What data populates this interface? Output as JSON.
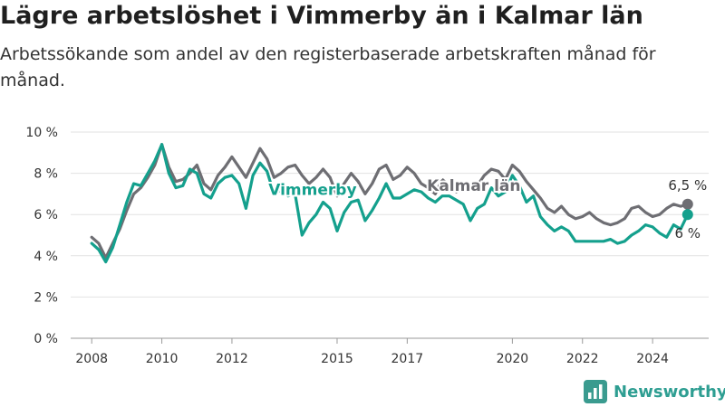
{
  "header": {
    "title": "Lägre arbetslöshet i Vimmerby än i Kalmar län",
    "subtitle": "Arbetssökande som andel av den registerbaserade arbetskraften månad för månad."
  },
  "brand": {
    "name": "Newsworthy",
    "icon": "bar-chart-logo-icon",
    "color": "#3a9b8f"
  },
  "chart_data": {
    "type": "line",
    "xlim": [
      2007.4,
      2025.6
    ],
    "ylim": [
      0,
      10
    ],
    "grid": "horizontal",
    "legend": "inline",
    "y_ticks": [
      0,
      2,
      4,
      6,
      8,
      10
    ],
    "y_tick_labels": [
      "0 %",
      "2 %",
      "4 %",
      "6 %",
      "8 %",
      "10 %"
    ],
    "x_ticks": [
      2008,
      2010,
      2012,
      2015,
      2017,
      2020,
      2022,
      2024
    ],
    "x_tick_labels": [
      "2008",
      "2010",
      "2012",
      "2015",
      "2017",
      "2020",
      "2022",
      "2024"
    ],
    "series": [
      {
        "name": "Kalmar län",
        "color": "#6e6e73",
        "end_label": "6,5 %",
        "x": [
          2008.0,
          2008.2,
          2008.4,
          2008.6,
          2008.8,
          2009.0,
          2009.2,
          2009.4,
          2009.6,
          2009.8,
          2010.0,
          2010.2,
          2010.4,
          2010.6,
          2010.8,
          2011.0,
          2011.2,
          2011.4,
          2011.6,
          2011.8,
          2012.0,
          2012.2,
          2012.4,
          2012.6,
          2012.8,
          2013.0,
          2013.2,
          2013.4,
          2013.6,
          2013.8,
          2014.0,
          2014.2,
          2014.4,
          2014.6,
          2014.8,
          2015.0,
          2015.2,
          2015.4,
          2015.6,
          2015.8,
          2016.0,
          2016.2,
          2016.4,
          2016.6,
          2016.8,
          2017.0,
          2017.2,
          2017.4,
          2017.6,
          2017.8,
          2018.0,
          2018.2,
          2018.4,
          2018.6,
          2018.8,
          2019.0,
          2019.2,
          2019.4,
          2019.6,
          2019.8,
          2020.0,
          2020.2,
          2020.4,
          2020.6,
          2020.8,
          2021.0,
          2021.2,
          2021.4,
          2021.6,
          2021.8,
          2022.0,
          2022.2,
          2022.4,
          2022.6,
          2022.8,
          2023.0,
          2023.2,
          2023.4,
          2023.6,
          2023.8,
          2024.0,
          2024.2,
          2024.4,
          2024.6,
          2024.8,
          2025.0
        ],
        "y": [
          4.9,
          4.6,
          3.9,
          4.6,
          5.3,
          6.2,
          7.0,
          7.3,
          7.8,
          8.4,
          9.4,
          8.3,
          7.6,
          7.7,
          8.0,
          8.4,
          7.5,
          7.2,
          7.9,
          8.3,
          8.8,
          8.3,
          7.8,
          8.5,
          9.2,
          8.7,
          7.8,
          8.0,
          8.3,
          8.4,
          7.9,
          7.5,
          7.8,
          8.2,
          7.8,
          6.9,
          7.5,
          8.0,
          7.6,
          7.0,
          7.5,
          8.2,
          8.4,
          7.7,
          7.9,
          8.3,
          8.0,
          7.5,
          7.3,
          7.0,
          7.7,
          7.4,
          7.1,
          7.5,
          7.4,
          7.4,
          7.9,
          8.2,
          8.1,
          7.7,
          8.4,
          8.1,
          7.6,
          7.2,
          6.8,
          6.3,
          6.1,
          6.4,
          6.0,
          5.8,
          5.9,
          6.1,
          5.8,
          5.6,
          5.5,
          5.6,
          5.8,
          6.3,
          6.4,
          6.1,
          5.9,
          6.0,
          6.3,
          6.5,
          6.4,
          6.5
        ],
        "end_marker": [
          2025.0,
          6.5
        ]
      },
      {
        "name": "Vimmerby",
        "color": "#14a08d",
        "end_label": "6 %",
        "x": [
          2008.0,
          2008.2,
          2008.4,
          2008.6,
          2008.8,
          2009.0,
          2009.2,
          2009.4,
          2009.6,
          2009.8,
          2010.0,
          2010.2,
          2010.4,
          2010.6,
          2010.8,
          2011.0,
          2011.2,
          2011.4,
          2011.6,
          2011.8,
          2012.0,
          2012.2,
          2012.4,
          2012.6,
          2012.8,
          2013.0,
          2013.2,
          2013.4,
          2013.6,
          2013.8,
          2014.0,
          2014.2,
          2014.4,
          2014.6,
          2014.8,
          2015.0,
          2015.2,
          2015.4,
          2015.6,
          2015.8,
          2016.0,
          2016.2,
          2016.4,
          2016.6,
          2016.8,
          2017.0,
          2017.2,
          2017.4,
          2017.6,
          2017.8,
          2018.0,
          2018.2,
          2018.4,
          2018.6,
          2018.8,
          2019.0,
          2019.2,
          2019.4,
          2019.6,
          2019.8,
          2020.0,
          2020.2,
          2020.4,
          2020.6,
          2020.8,
          2021.0,
          2021.2,
          2021.4,
          2021.6,
          2021.8,
          2022.0,
          2022.2,
          2022.4,
          2022.6,
          2022.8,
          2023.0,
          2023.2,
          2023.4,
          2023.6,
          2023.8,
          2024.0,
          2024.2,
          2024.4,
          2024.6,
          2024.8,
          2025.0
        ],
        "y": [
          4.6,
          4.3,
          3.7,
          4.4,
          5.5,
          6.6,
          7.5,
          7.4,
          8.0,
          8.6,
          9.4,
          8.0,
          7.3,
          7.4,
          8.2,
          8.0,
          7.0,
          6.8,
          7.5,
          7.8,
          7.9,
          7.5,
          6.3,
          7.9,
          8.5,
          8.1,
          7.0,
          7.2,
          6.9,
          7.0,
          5.0,
          5.6,
          6.0,
          6.6,
          6.3,
          5.2,
          6.1,
          6.6,
          6.7,
          5.7,
          6.2,
          6.8,
          7.5,
          6.8,
          6.8,
          7.0,
          7.2,
          7.1,
          6.8,
          6.6,
          6.9,
          6.9,
          6.7,
          6.5,
          5.7,
          6.3,
          6.5,
          7.3,
          6.9,
          7.1,
          7.9,
          7.4,
          6.6,
          6.9,
          5.9,
          5.5,
          5.2,
          5.4,
          5.2,
          4.7,
          4.7,
          4.7,
          4.7,
          4.7,
          4.8,
          4.6,
          4.7,
          5.0,
          5.2,
          5.5,
          5.4,
          5.1,
          4.9,
          5.5,
          5.3,
          6.0
        ],
        "end_marker": [
          2025.0,
          6.0
        ]
      }
    ]
  }
}
